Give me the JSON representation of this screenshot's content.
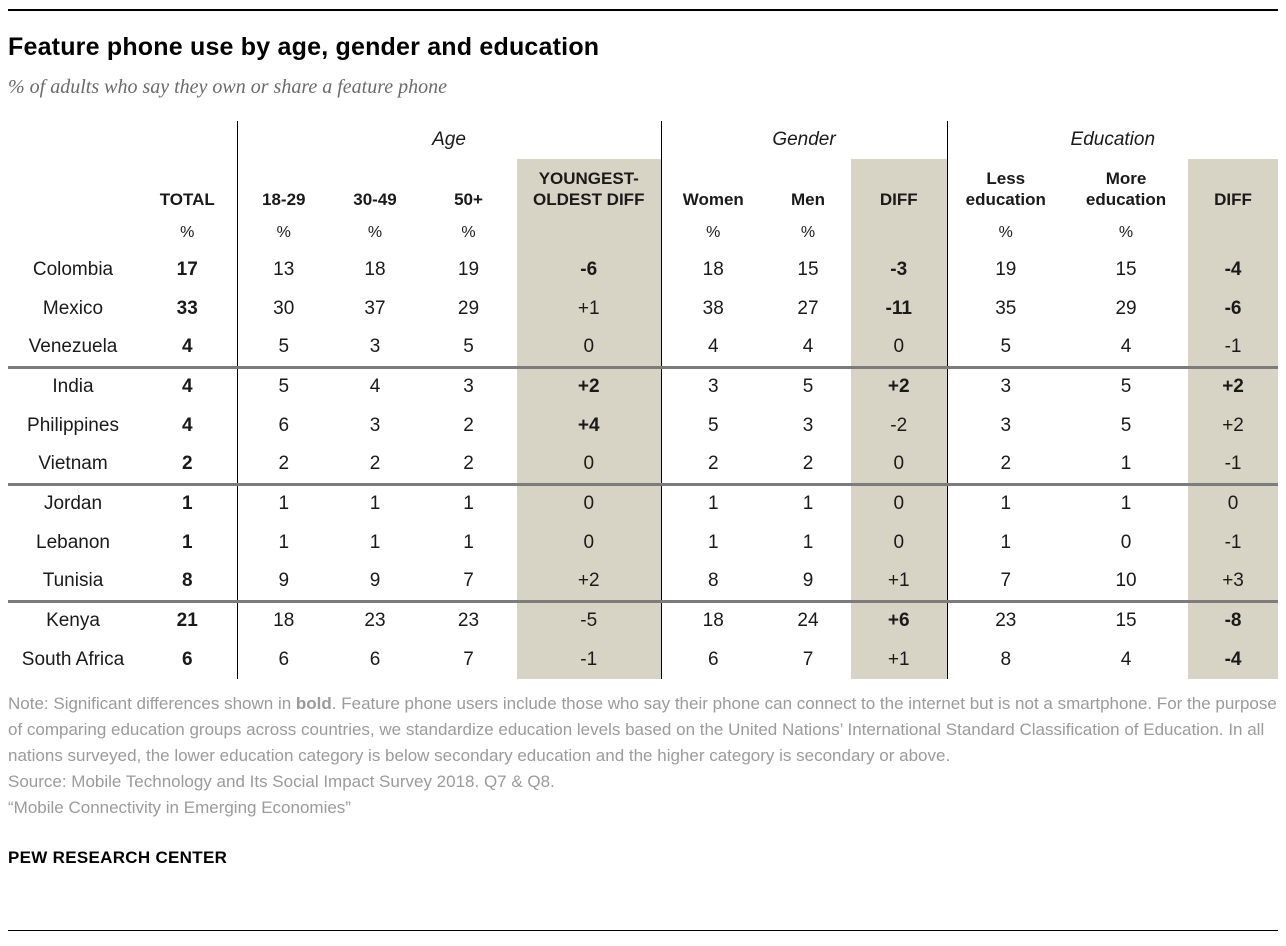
{
  "header": {
    "title": "Feature phone use by age, gender and education",
    "subtitle": "% of adults who say they own or share a feature phone"
  },
  "chart_data": {
    "type": "table",
    "title": "Feature phone use by age, gender and education",
    "subtitle": "% of adults who say they own or share a feature phone",
    "unit": "%",
    "groups": [
      {
        "label": "Age"
      },
      {
        "label": "Gender"
      },
      {
        "label": "Education"
      }
    ],
    "columns": [
      {
        "key": "country",
        "label": "",
        "pct": ""
      },
      {
        "key": "total",
        "label": "TOTAL",
        "pct": "%"
      },
      {
        "key": "age_18_29",
        "label": "18-29",
        "pct": "%"
      },
      {
        "key": "age_30_49",
        "label": "30-49",
        "pct": "%"
      },
      {
        "key": "age_50_plus",
        "label": "50+",
        "pct": "%"
      },
      {
        "key": "age_diff",
        "label": "YOUNGEST-OLDEST DIFF",
        "pct": ""
      },
      {
        "key": "women",
        "label": "Women",
        "pct": "%"
      },
      {
        "key": "men",
        "label": "Men",
        "pct": "%"
      },
      {
        "key": "gender_diff",
        "label": "DIFF",
        "pct": ""
      },
      {
        "key": "less_education",
        "label": "Less education",
        "pct": "%"
      },
      {
        "key": "more_education",
        "label": "More education",
        "pct": "%"
      },
      {
        "key": "education_diff",
        "label": "DIFF",
        "pct": ""
      }
    ],
    "rows": [
      {
        "country": "Colombia",
        "total": 17,
        "age_18_29": 13,
        "age_30_49": 18,
        "age_50_plus": 19,
        "age_diff": "-6",
        "women": 18,
        "men": 15,
        "gender_diff": "-3",
        "less_education": 19,
        "more_education": 15,
        "education_diff": "-4",
        "bold": [
          "total",
          "age_diff",
          "gender_diff",
          "education_diff"
        ],
        "section_end": false
      },
      {
        "country": "Mexico",
        "total": 33,
        "age_18_29": 30,
        "age_30_49": 37,
        "age_50_plus": 29,
        "age_diff": "+1",
        "women": 38,
        "men": 27,
        "gender_diff": "-11",
        "less_education": 35,
        "more_education": 29,
        "education_diff": "-6",
        "bold": [
          "total",
          "gender_diff",
          "education_diff"
        ],
        "section_end": false
      },
      {
        "country": "Venezuela",
        "total": 4,
        "age_18_29": 5,
        "age_30_49": 3,
        "age_50_plus": 5,
        "age_diff": "0",
        "women": 4,
        "men": 4,
        "gender_diff": "0",
        "less_education": 5,
        "more_education": 4,
        "education_diff": "-1",
        "bold": [
          "total"
        ],
        "section_end": true
      },
      {
        "country": "India",
        "total": 4,
        "age_18_29": 5,
        "age_30_49": 4,
        "age_50_plus": 3,
        "age_diff": "+2",
        "women": 3,
        "men": 5,
        "gender_diff": "+2",
        "less_education": 3,
        "more_education": 5,
        "education_diff": "+2",
        "bold": [
          "total",
          "age_diff",
          "gender_diff",
          "education_diff"
        ],
        "section_end": false
      },
      {
        "country": "Philippines",
        "total": 4,
        "age_18_29": 6,
        "age_30_49": 3,
        "age_50_plus": 2,
        "age_diff": "+4",
        "women": 5,
        "men": 3,
        "gender_diff": "-2",
        "less_education": 3,
        "more_education": 5,
        "education_diff": "+2",
        "bold": [
          "total",
          "age_diff"
        ],
        "section_end": false
      },
      {
        "country": "Vietnam",
        "total": 2,
        "age_18_29": 2,
        "age_30_49": 2,
        "age_50_plus": 2,
        "age_diff": "0",
        "women": 2,
        "men": 2,
        "gender_diff": "0",
        "less_education": 2,
        "more_education": 1,
        "education_diff": "-1",
        "bold": [
          "total"
        ],
        "section_end": true
      },
      {
        "country": "Jordan",
        "total": 1,
        "age_18_29": 1,
        "age_30_49": 1,
        "age_50_plus": 1,
        "age_diff": "0",
        "women": 1,
        "men": 1,
        "gender_diff": "0",
        "less_education": 1,
        "more_education": 1,
        "education_diff": "0",
        "bold": [
          "total"
        ],
        "section_end": false
      },
      {
        "country": "Lebanon",
        "total": 1,
        "age_18_29": 1,
        "age_30_49": 1,
        "age_50_plus": 1,
        "age_diff": "0",
        "women": 1,
        "men": 1,
        "gender_diff": "0",
        "less_education": 1,
        "more_education": 0,
        "education_diff": "-1",
        "bold": [
          "total"
        ],
        "section_end": false
      },
      {
        "country": "Tunisia",
        "total": 8,
        "age_18_29": 9,
        "age_30_49": 9,
        "age_50_plus": 7,
        "age_diff": "+2",
        "women": 8,
        "men": 9,
        "gender_diff": "+1",
        "less_education": 7,
        "more_education": 10,
        "education_diff": "+3",
        "bold": [
          "total"
        ],
        "section_end": true
      },
      {
        "country": "Kenya",
        "total": 21,
        "age_18_29": 18,
        "age_30_49": 23,
        "age_50_plus": 23,
        "age_diff": "-5",
        "women": 18,
        "men": 24,
        "gender_diff": "+6",
        "less_education": 23,
        "more_education": 15,
        "education_diff": "-8",
        "bold": [
          "total",
          "gender_diff",
          "education_diff"
        ],
        "section_end": false
      },
      {
        "country": "South Africa",
        "total": 6,
        "age_18_29": 6,
        "age_30_49": 6,
        "age_50_plus": 7,
        "age_diff": "-1",
        "women": 6,
        "men": 7,
        "gender_diff": "+1",
        "less_education": 8,
        "more_education": 4,
        "education_diff": "-4",
        "bold": [
          "total",
          "education_diff"
        ],
        "section_end": false
      }
    ]
  },
  "notes": {
    "note_prefix": "Note: Significant differences shown in ",
    "note_bold_word": "bold",
    "note_suffix": ". Feature phone users include those who say their phone can connect to the internet but is not a smartphone. For the purpose of comparing education groups across countries, we standardize education levels based on the United Nations’ International Standard Classification of Education. In all nations surveyed, the lower education category is below secondary education and the higher category is secondary or above.",
    "source": "Source: Mobile Technology and Its Social Impact Survey 2018. Q7 & Q8.",
    "report": "“Mobile Connectivity in Emerging Economies”"
  },
  "brand": "PEW RESEARCH CENTER",
  "colors": {
    "shaded_column": "#d8d4c5",
    "section_divider": "#7c7c7c",
    "note_text": "#9b9b9b"
  }
}
